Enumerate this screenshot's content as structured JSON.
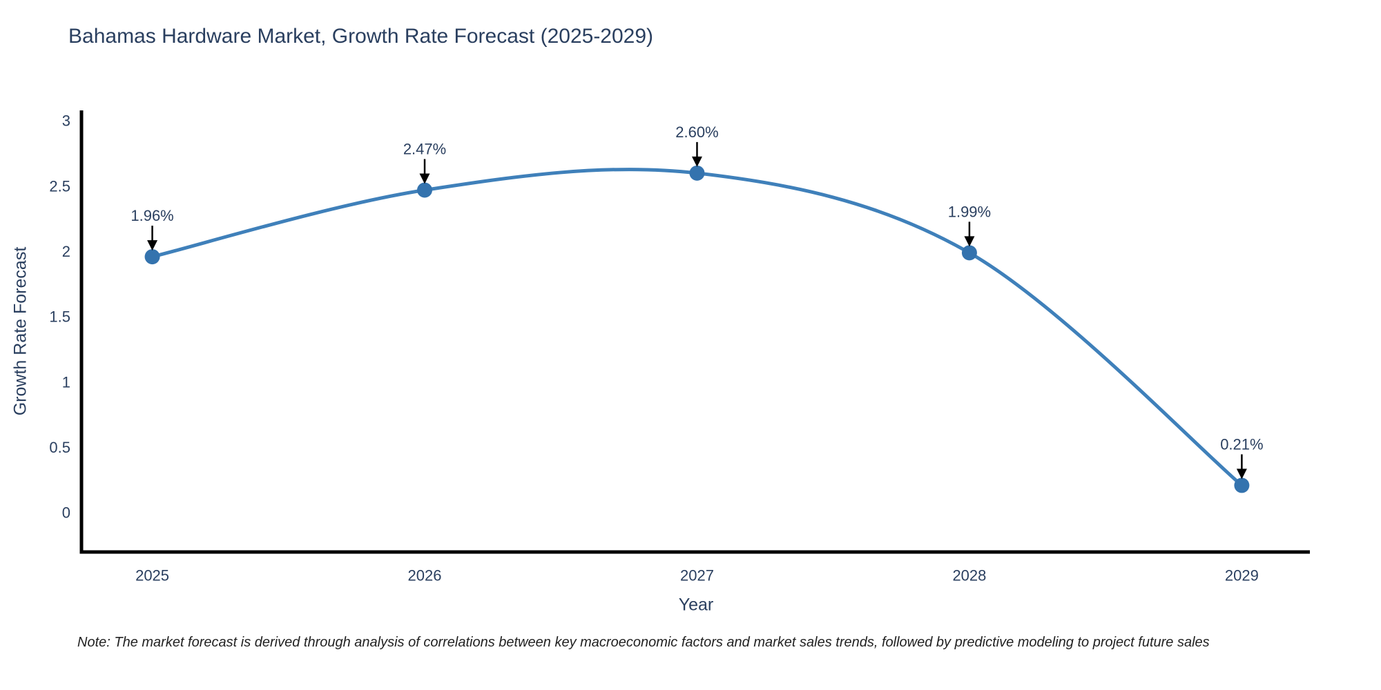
{
  "title": "Bahamas Hardware Market, Growth Rate Forecast (2025-2029)",
  "note": "Note: The market forecast is derived through analysis of correlations between key macroeconomic factors and market sales trends, followed by predictive modeling to project future sales",
  "chart_data": {
    "type": "line",
    "title": "Bahamas Hardware Market, Growth Rate Forecast (2025-2029)",
    "xlabel": "Year",
    "ylabel": "Growth Rate Forecast",
    "x": [
      2025,
      2026,
      2027,
      2028,
      2029
    ],
    "values": [
      1.96,
      2.47,
      2.6,
      1.99,
      0.21
    ],
    "point_labels": [
      "1.96%",
      "2.47%",
      "2.60%",
      "1.99%",
      "0.21%"
    ],
    "x_tick_labels": [
      "2025",
      "2026",
      "2027",
      "2028",
      "2029"
    ],
    "y_ticks": [
      0,
      0.5,
      1,
      1.5,
      2,
      2.5,
      3
    ],
    "y_tick_labels": [
      "0",
      "0.5",
      "1",
      "1.5",
      "2",
      "2.5",
      "3"
    ],
    "xlim": [
      2024.74,
      2029.25
    ],
    "ylim": [
      -0.3,
      3.08
    ],
    "grid": false,
    "legend": false,
    "line_shape": "spline",
    "colors": {
      "line": "#3f80ba",
      "marker": "#3473ae",
      "axis": "#000000",
      "tick_text": "#2a3f5f",
      "annotation_text": "#2a3f5f",
      "annotation_arrow": "#000000",
      "title_text": "#2a3f5f"
    }
  }
}
